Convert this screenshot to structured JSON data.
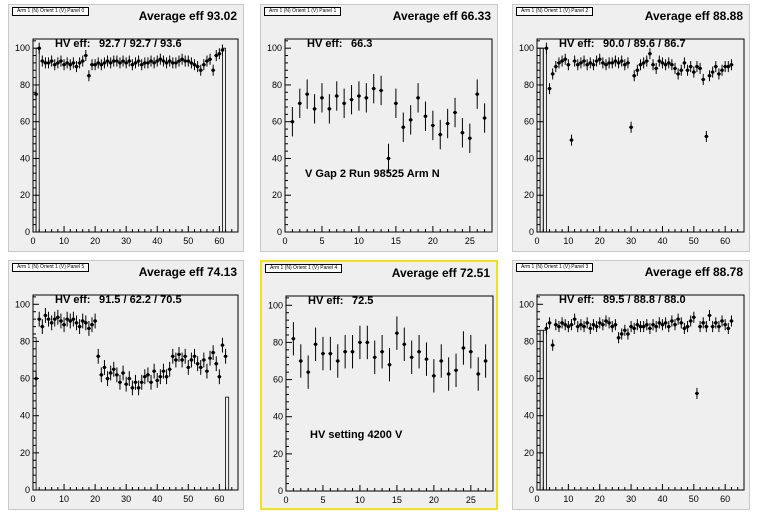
{
  "chart_data": [
    {
      "type": "scatter",
      "panel_title": "Arm 1 (N) Orient 1 (V) Panel 0",
      "avg_label": "Average eff 93.02",
      "hv_label": "HV eff:",
      "hv_values": "92.7 / 92.7 / 93.6",
      "annotation": "",
      "xlim": [
        0,
        66
      ],
      "ylim": [
        0,
        105
      ],
      "xticks": [
        0,
        10,
        20,
        30,
        40,
        50,
        60
      ],
      "yticks": [
        0,
        20,
        40,
        60,
        80,
        100
      ],
      "gap_bars": [
        [
          0.5,
          75
        ],
        [
          1.5,
          100
        ],
        [
          61.5,
          100
        ]
      ],
      "points": [
        [
          1,
          75
        ],
        [
          2,
          100
        ],
        [
          3,
          93
        ],
        [
          4,
          92
        ],
        [
          5,
          92
        ],
        [
          6,
          93
        ],
        [
          7,
          91
        ],
        [
          8,
          92
        ],
        [
          9,
          93
        ],
        [
          10,
          91
        ],
        [
          11,
          92
        ],
        [
          12,
          91
        ],
        [
          13,
          92
        ],
        [
          14,
          90
        ],
        [
          15,
          92
        ],
        [
          16,
          93
        ],
        [
          17,
          96
        ],
        [
          18,
          85
        ],
        [
          19,
          91
        ],
        [
          20,
          91
        ],
        [
          21,
          92
        ],
        [
          22,
          91
        ],
        [
          23,
          92
        ],
        [
          24,
          93
        ],
        [
          25,
          92
        ],
        [
          26,
          93
        ],
        [
          27,
          93
        ],
        [
          28,
          92
        ],
        [
          29,
          93
        ],
        [
          30,
          92
        ],
        [
          31,
          93
        ],
        [
          32,
          91
        ],
        [
          33,
          92
        ],
        [
          34,
          93
        ],
        [
          35,
          91
        ],
        [
          36,
          92
        ],
        [
          37,
          92
        ],
        [
          38,
          93
        ],
        [
          39,
          92
        ],
        [
          40,
          93
        ],
        [
          41,
          94
        ],
        [
          42,
          93
        ],
        [
          43,
          92
        ],
        [
          44,
          93
        ],
        [
          45,
          92
        ],
        [
          46,
          92
        ],
        [
          47,
          93
        ],
        [
          48,
          94
        ],
        [
          49,
          93
        ],
        [
          50,
          93
        ],
        [
          51,
          92
        ],
        [
          52,
          91
        ],
        [
          53,
          90
        ],
        [
          54,
          88
        ],
        [
          55,
          91
        ],
        [
          56,
          93
        ],
        [
          57,
          94
        ],
        [
          58,
          88
        ],
        [
          59,
          96
        ],
        [
          60,
          97
        ],
        [
          61,
          99
        ]
      ],
      "err": 3
    },
    {
      "type": "scatter",
      "panel_title": "Arm 1 (N) Orient 1 (V) Panel 1",
      "avg_label": "Average eff 66.33",
      "hv_label": "HV eff:",
      "hv_values": "66.3",
      "annotation": "V Gap 2 Run 98525 Arm N",
      "xlim": [
        0,
        28
      ],
      "ylim": [
        0,
        105
      ],
      "xticks": [
        0,
        5,
        10,
        15,
        20,
        25
      ],
      "yticks": [
        0,
        20,
        40,
        60,
        80,
        100
      ],
      "gap_bars": [],
      "points": [
        [
          1,
          60
        ],
        [
          2,
          70
        ],
        [
          3,
          75
        ],
        [
          4,
          67
        ],
        [
          5,
          73
        ],
        [
          6,
          67
        ],
        [
          7,
          74
        ],
        [
          8,
          70
        ],
        [
          9,
          72
        ],
        [
          10,
          74
        ],
        [
          11,
          73
        ],
        [
          12,
          78
        ],
        [
          13,
          77
        ],
        [
          14,
          40
        ],
        [
          15,
          70
        ],
        [
          16,
          57
        ],
        [
          17,
          61
        ],
        [
          18,
          73
        ],
        [
          19,
          63
        ],
        [
          20,
          58
        ],
        [
          21,
          53
        ],
        [
          22,
          59
        ],
        [
          23,
          65
        ],
        [
          24,
          54
        ],
        [
          25,
          51
        ],
        [
          26,
          75
        ],
        [
          27,
          62
        ]
      ],
      "err": 8
    },
    {
      "type": "scatter",
      "panel_title": "Arm 1 (N) Orient 1 (V) Panel 2",
      "avg_label": "Average eff 88.88",
      "hv_label": "HV eff:",
      "hv_values": "90.0 / 89.6 / 86.7",
      "annotation": "",
      "xlim": [
        0,
        66
      ],
      "ylim": [
        0,
        105
      ],
      "xticks": [
        0,
        10,
        20,
        30,
        40,
        50,
        60
      ],
      "yticks": [
        0,
        20,
        40,
        60,
        80,
        100
      ],
      "gap_bars": [
        [
          0.5,
          100
        ],
        [
          1.5,
          100
        ],
        [
          2.5,
          100
        ]
      ],
      "points": [
        [
          3,
          100
        ],
        [
          4,
          78
        ],
        [
          5,
          86
        ],
        [
          6,
          90
        ],
        [
          7,
          92
        ],
        [
          8,
          93
        ],
        [
          9,
          94
        ],
        [
          10,
          91
        ],
        [
          11,
          50
        ],
        [
          12,
          93
        ],
        [
          13,
          91
        ],
        [
          14,
          92
        ],
        [
          15,
          93
        ],
        [
          16,
          91
        ],
        [
          17,
          92
        ],
        [
          18,
          91
        ],
        [
          19,
          93
        ],
        [
          20,
          94
        ],
        [
          21,
          92
        ],
        [
          22,
          91
        ],
        [
          23,
          92
        ],
        [
          24,
          92
        ],
        [
          25,
          93
        ],
        [
          26,
          92
        ],
        [
          27,
          93
        ],
        [
          28,
          91
        ],
        [
          29,
          92
        ],
        [
          30,
          57
        ],
        [
          31,
          85
        ],
        [
          32,
          88
        ],
        [
          33,
          91
        ],
        [
          34,
          92
        ],
        [
          35,
          93
        ],
        [
          36,
          97
        ],
        [
          37,
          91
        ],
        [
          38,
          89
        ],
        [
          39,
          93
        ],
        [
          40,
          92
        ],
        [
          41,
          91
        ],
        [
          42,
          92
        ],
        [
          43,
          91
        ],
        [
          44,
          89
        ],
        [
          45,
          86
        ],
        [
          46,
          88
        ],
        [
          47,
          92
        ],
        [
          48,
          88
        ],
        [
          49,
          90
        ],
        [
          50,
          87
        ],
        [
          51,
          90
        ],
        [
          52,
          89
        ],
        [
          53,
          83
        ],
        [
          54,
          52
        ],
        [
          55,
          85
        ],
        [
          56,
          87
        ],
        [
          57,
          90
        ],
        [
          58,
          86
        ],
        [
          59,
          88
        ],
        [
          60,
          90
        ],
        [
          61,
          90
        ],
        [
          62,
          91
        ]
      ],
      "err": 3
    },
    {
      "type": "scatter",
      "panel_title": "Arm 1 (N) Orient 1 (V) Panel 5",
      "avg_label": "Average eff 74.13",
      "hv_label": "HV eff:",
      "hv_values": "91.5 / 62.2 / 70.5",
      "annotation": "",
      "xlim": [
        0,
        66
      ],
      "ylim": [
        0,
        105
      ],
      "xticks": [
        0,
        10,
        20,
        30,
        40,
        50,
        60
      ],
      "yticks": [
        0,
        20,
        40,
        60,
        80,
        100
      ],
      "gap_bars": [
        [
          0.5,
          82
        ],
        [
          62.5,
          50
        ]
      ],
      "points": [
        [
          1,
          60
        ],
        [
          2,
          92
        ],
        [
          3,
          88
        ],
        [
          4,
          94
        ],
        [
          5,
          92
        ],
        [
          6,
          90
        ],
        [
          7,
          92
        ],
        [
          8,
          93
        ],
        [
          9,
          91
        ],
        [
          10,
          89
        ],
        [
          11,
          92
        ],
        [
          12,
          91
        ],
        [
          13,
          92
        ],
        [
          14,
          90
        ],
        [
          15,
          88
        ],
        [
          16,
          91
        ],
        [
          17,
          90
        ],
        [
          18,
          87
        ],
        [
          19,
          89
        ],
        [
          20,
          91
        ],
        [
          21,
          72
        ],
        [
          22,
          62
        ],
        [
          23,
          66
        ],
        [
          24,
          60
        ],
        [
          25,
          63
        ],
        [
          26,
          65
        ],
        [
          27,
          62
        ],
        [
          28,
          58
        ],
        [
          29,
          63
        ],
        [
          30,
          57
        ],
        [
          31,
          60
        ],
        [
          32,
          55
        ],
        [
          33,
          58
        ],
        [
          34,
          55
        ],
        [
          35,
          58
        ],
        [
          36,
          61
        ],
        [
          37,
          62
        ],
        [
          38,
          58
        ],
        [
          39,
          64
        ],
        [
          40,
          59
        ],
        [
          41,
          61
        ],
        [
          42,
          64
        ],
        [
          43,
          61
        ],
        [
          44,
          65
        ],
        [
          45,
          72
        ],
        [
          46,
          70
        ],
        [
          47,
          73
        ],
        [
          48,
          70
        ],
        [
          49,
          72
        ],
        [
          50,
          66
        ],
        [
          51,
          70
        ],
        [
          52,
          72
        ],
        [
          53,
          68
        ],
        [
          54,
          66
        ],
        [
          55,
          70
        ],
        [
          56,
          64
        ],
        [
          57,
          71
        ],
        [
          58,
          74
        ],
        [
          59,
          68
        ],
        [
          60,
          61
        ],
        [
          61,
          78
        ],
        [
          62,
          72
        ]
      ],
      "err": 4
    },
    {
      "type": "scatter",
      "panel_title": "Arm 1 (N) Orient 1 (V) Panel 4",
      "avg_label": "Average eff 72.51",
      "hv_label": "HV eff:",
      "hv_values": "72.5",
      "annotation": "HV setting 4200 V",
      "xlim": [
        0,
        28
      ],
      "ylim": [
        0,
        105
      ],
      "xticks": [
        0,
        5,
        10,
        15,
        20,
        25
      ],
      "yticks": [
        0,
        20,
        40,
        60,
        80,
        100
      ],
      "gap_bars": [],
      "points": [
        [
          1,
          82
        ],
        [
          2,
          70
        ],
        [
          3,
          64
        ],
        [
          4,
          79
        ],
        [
          5,
          74
        ],
        [
          6,
          74
        ],
        [
          7,
          70
        ],
        [
          8,
          75
        ],
        [
          9,
          75
        ],
        [
          10,
          80
        ],
        [
          11,
          80
        ],
        [
          12,
          72
        ],
        [
          13,
          75
        ],
        [
          14,
          68
        ],
        [
          15,
          85
        ],
        [
          16,
          79
        ],
        [
          17,
          72
        ],
        [
          18,
          75
        ],
        [
          19,
          71
        ],
        [
          20,
          62
        ],
        [
          21,
          70
        ],
        [
          22,
          63
        ],
        [
          23,
          65
        ],
        [
          24,
          77
        ],
        [
          25,
          75
        ],
        [
          26,
          63
        ],
        [
          27,
          70
        ]
      ],
      "err": 9
    },
    {
      "type": "scatter",
      "panel_title": "Arm 1 (N) Orient 1 (V) Panel 3",
      "avg_label": "Average eff 88.78",
      "hv_label": "HV eff:",
      "hv_values": "89.5 / 88.8 / 88.0",
      "annotation": "",
      "xlim": [
        0,
        66
      ],
      "ylim": [
        0,
        105
      ],
      "xticks": [
        0,
        10,
        20,
        30,
        40,
        50,
        60
      ],
      "yticks": [
        0,
        20,
        40,
        60,
        80,
        100
      ],
      "gap_bars": [
        [
          0.5,
          86
        ],
        [
          1.5,
          86
        ],
        [
          2.5,
          86
        ]
      ],
      "points": [
        [
          3,
          87
        ],
        [
          4,
          90
        ],
        [
          5,
          78
        ],
        [
          6,
          89
        ],
        [
          7,
          88
        ],
        [
          8,
          90
        ],
        [
          9,
          89
        ],
        [
          10,
          88
        ],
        [
          11,
          89
        ],
        [
          12,
          92
        ],
        [
          13,
          88
        ],
        [
          14,
          89
        ],
        [
          15,
          88
        ],
        [
          16,
          90
        ],
        [
          17,
          87
        ],
        [
          18,
          89
        ],
        [
          19,
          88
        ],
        [
          20,
          90
        ],
        [
          21,
          89
        ],
        [
          22,
          91
        ],
        [
          23,
          90
        ],
        [
          24,
          88
        ],
        [
          25,
          89
        ],
        [
          26,
          82
        ],
        [
          27,
          84
        ],
        [
          28,
          86
        ],
        [
          29,
          84
        ],
        [
          30,
          88
        ],
        [
          31,
          87
        ],
        [
          32,
          89
        ],
        [
          33,
          88
        ],
        [
          34,
          88
        ],
        [
          35,
          89
        ],
        [
          36,
          87
        ],
        [
          37,
          89
        ],
        [
          38,
          88
        ],
        [
          39,
          90
        ],
        [
          40,
          89
        ],
        [
          41,
          90
        ],
        [
          42,
          88
        ],
        [
          43,
          91
        ],
        [
          44,
          89
        ],
        [
          45,
          92
        ],
        [
          46,
          90
        ],
        [
          47,
          87
        ],
        [
          48,
          88
        ],
        [
          49,
          91
        ],
        [
          50,
          93
        ],
        [
          51,
          52
        ],
        [
          52,
          88
        ],
        [
          53,
          90
        ],
        [
          54,
          88
        ],
        [
          55,
          94
        ],
        [
          56,
          88
        ],
        [
          57,
          90
        ],
        [
          58,
          88
        ],
        [
          59,
          91
        ],
        [
          60,
          89
        ],
        [
          61,
          87
        ],
        [
          62,
          91
        ]
      ],
      "err": 3
    }
  ]
}
